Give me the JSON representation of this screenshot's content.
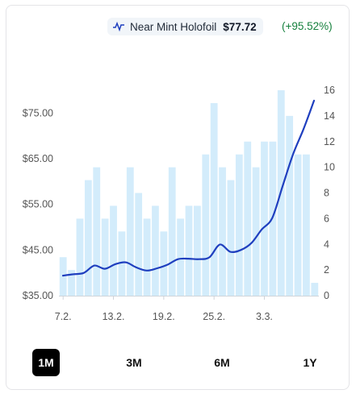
{
  "legend": {
    "condition": "Near Mint Holofoil",
    "price": "$77.72",
    "change": "(+95.52%)"
  },
  "periods": {
    "selected": "1M",
    "items": [
      "1M",
      "3M",
      "6M",
      "1Y"
    ]
  },
  "colors": {
    "line": "#1f3fbf",
    "bars": "#d3ecfb",
    "change": "#15803d"
  },
  "chart_data": {
    "type": "line",
    "price_axis": {
      "ticks": [
        "$35.00",
        "$45.00",
        "$55.00",
        "$65.00",
        "$75.00"
      ],
      "ylim": [
        35,
        80
      ]
    },
    "volume_axis": {
      "ticks": [
        "0",
        "2",
        "4",
        "6",
        "8",
        "10",
        "12",
        "14",
        "16"
      ],
      "ylim": [
        0,
        16
      ]
    },
    "x_ticks": [
      "7.2.",
      "13.2.",
      "19.2.",
      "25.2.",
      "3.3."
    ],
    "price_series": [
      39.4,
      39.7,
      40.0,
      41.6,
      40.9,
      41.9,
      42.3,
      41.2,
      40.5,
      41.0,
      41.8,
      43.0,
      43.1,
      43.0,
      43.4,
      46.2,
      44.6,
      45.0,
      46.5,
      49.5,
      52.0,
      59.0,
      66.0,
      71.5,
      77.72
    ],
    "volume_series": [
      3,
      2,
      6,
      9,
      10,
      6,
      7,
      5,
      10,
      8,
      6,
      7,
      5,
      10,
      6,
      7,
      7,
      11,
      15,
      10,
      9,
      11,
      12,
      10,
      12,
      12,
      16,
      14,
      11,
      11,
      1
    ]
  }
}
